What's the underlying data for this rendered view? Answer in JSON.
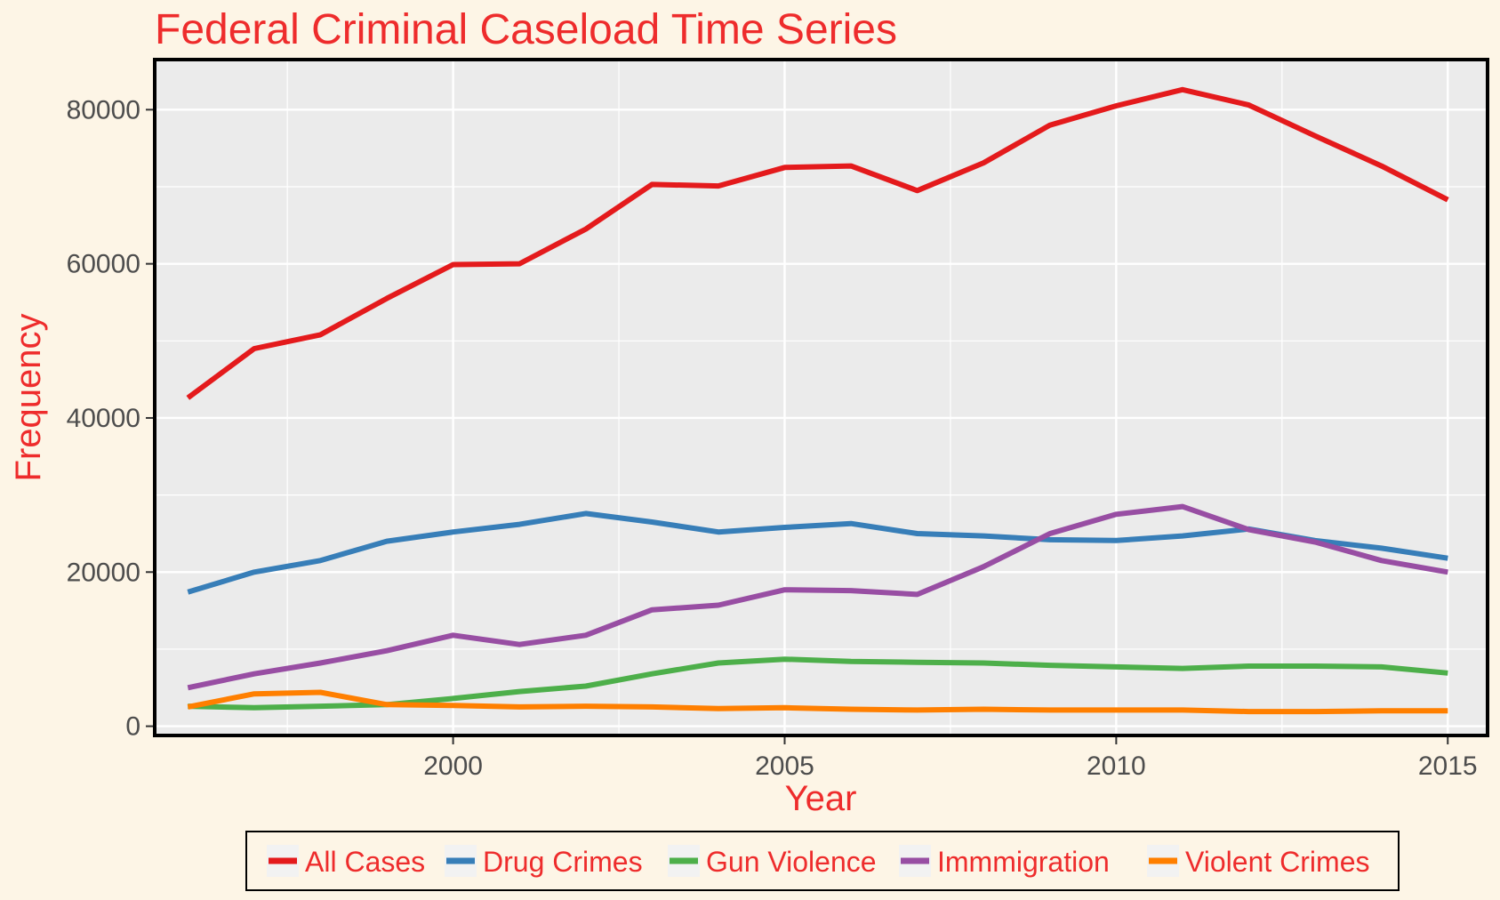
{
  "chart_data": {
    "type": "line",
    "title": "Federal Criminal Caseload Time Series",
    "xlabel": "Year",
    "ylabel": "Frequency",
    "xlim": [
      1995.5,
      2015.6
    ],
    "ylim": [
      -1200,
      86500
    ],
    "x_ticks": [
      2000,
      2005,
      2010,
      2015
    ],
    "x_tick_labels": [
      "2000",
      "2005",
      "2010",
      "2015"
    ],
    "y_ticks": [
      0,
      20000,
      40000,
      60000,
      80000
    ],
    "y_tick_labels": [
      "0",
      "20000",
      "40000",
      "60000",
      "80000"
    ],
    "grid": true,
    "legend_position": "bottom",
    "x": [
      1996,
      1997,
      1998,
      1999,
      2000,
      2001,
      2002,
      2003,
      2004,
      2005,
      2006,
      2007,
      2008,
      2009,
      2010,
      2011,
      2012,
      2013,
      2014,
      2015
    ],
    "series": [
      {
        "name": "All Cases",
        "color": "#e41a1c",
        "values": [
          42600,
          49000,
          50800,
          55500,
          59900,
          60000,
          64500,
          70300,
          70100,
          72500,
          72700,
          69500,
          73100,
          78000,
          80500,
          82600,
          80600,
          76600,
          72700,
          68300
        ]
      },
      {
        "name": "Drug Crimes",
        "color": "#377eb8",
        "values": [
          17400,
          20000,
          21500,
          24000,
          25200,
          26200,
          27600,
          26500,
          25200,
          25800,
          26300,
          25000,
          24700,
          24200,
          24100,
          24700,
          25600,
          24100,
          23100,
          21800
        ]
      },
      {
        "name": "Gun Violence",
        "color": "#4daf4a",
        "values": [
          2600,
          2400,
          2600,
          2800,
          3600,
          4500,
          5200,
          6800,
          8200,
          8700,
          8400,
          8300,
          8200,
          7900,
          7700,
          7500,
          7800,
          7800,
          7700,
          6900
        ]
      },
      {
        "name": "Immmigration",
        "color": "#984ea3",
        "values": [
          5000,
          6800,
          8200,
          9800,
          11800,
          10600,
          11800,
          15100,
          15700,
          17700,
          17600,
          17100,
          20700,
          25000,
          27500,
          28500,
          25500,
          23900,
          21500,
          20000
        ]
      },
      {
        "name": "Violent Crimes",
        "color": "#ff7f00",
        "values": [
          2500,
          4200,
          4400,
          2800,
          2700,
          2500,
          2600,
          2500,
          2300,
          2400,
          2200,
          2100,
          2200,
          2100,
          2100,
          2100,
          1900,
          1900,
          2000,
          2000
        ]
      }
    ]
  }
}
